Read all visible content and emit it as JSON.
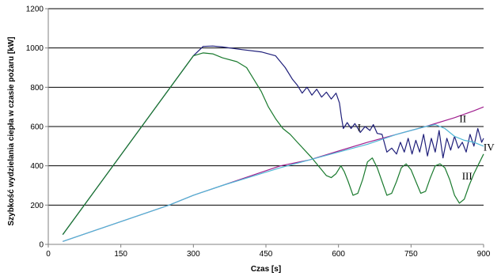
{
  "chart_data": {
    "type": "line",
    "title": "",
    "xlabel": "Czas [s]",
    "ylabel": "Szybkość wydzielania ciepła w czasie pożaru [kW]",
    "xlim": [
      0,
      900
    ],
    "ylim": [
      0,
      1200
    ],
    "xticks": [
      0,
      150,
      300,
      450,
      600,
      750,
      900
    ],
    "yticks": [
      0,
      200,
      400,
      600,
      800,
      1000,
      1200
    ],
    "grid": "horizontal",
    "colors": {
      "grid": "#000000",
      "axis": "#808080"
    },
    "series": [
      {
        "name": "I",
        "color": "#1f1f7a",
        "points": [
          [
            30,
            50
          ],
          [
            300,
            960
          ],
          [
            320,
            1008
          ],
          [
            340,
            1010
          ],
          [
            360,
            1005
          ],
          [
            400,
            992
          ],
          [
            440,
            980
          ],
          [
            470,
            960
          ],
          [
            490,
            900
          ],
          [
            505,
            840
          ],
          [
            515,
            810
          ],
          [
            525,
            770
          ],
          [
            535,
            800
          ],
          [
            545,
            760
          ],
          [
            555,
            790
          ],
          [
            565,
            750
          ],
          [
            575,
            775
          ],
          [
            585,
            740
          ],
          [
            595,
            770
          ],
          [
            602,
            720
          ],
          [
            606,
            650
          ],
          [
            610,
            590
          ],
          [
            618,
            620
          ],
          [
            626,
            590
          ],
          [
            634,
            615
          ],
          [
            645,
            570
          ],
          [
            655,
            600
          ],
          [
            665,
            580
          ],
          [
            672,
            610
          ],
          [
            680,
            565
          ],
          [
            690,
            560
          ],
          [
            700,
            470
          ],
          [
            710,
            490
          ],
          [
            720,
            460
          ],
          [
            728,
            520
          ],
          [
            736,
            470
          ],
          [
            744,
            540
          ],
          [
            752,
            460
          ],
          [
            760,
            530
          ],
          [
            768,
            470
          ],
          [
            776,
            560
          ],
          [
            784,
            450
          ],
          [
            792,
            540
          ],
          [
            800,
            470
          ],
          [
            808,
            580
          ],
          [
            816,
            440
          ],
          [
            824,
            540
          ],
          [
            832,
            480
          ],
          [
            840,
            550
          ],
          [
            848,
            490
          ],
          [
            856,
            520
          ],
          [
            864,
            470
          ],
          [
            872,
            560
          ],
          [
            880,
            500
          ],
          [
            888,
            590
          ],
          [
            896,
            520
          ],
          [
            900,
            540
          ]
        ]
      },
      {
        "name": "II",
        "color": "#a0208f",
        "points": [
          [
            30,
            15
          ],
          [
            250,
            200
          ],
          [
            300,
            250
          ],
          [
            360,
            300
          ],
          [
            420,
            350
          ],
          [
            480,
            400
          ],
          [
            540,
            430
          ],
          [
            600,
            475
          ],
          [
            660,
            520
          ],
          [
            720,
            560
          ],
          [
            780,
            600
          ],
          [
            840,
            645
          ],
          [
            880,
            680
          ],
          [
            900,
            700
          ]
        ]
      },
      {
        "name": "III",
        "color": "#1a7a2e",
        "points": [
          [
            30,
            50
          ],
          [
            300,
            960
          ],
          [
            320,
            975
          ],
          [
            340,
            970
          ],
          [
            360,
            950
          ],
          [
            390,
            930
          ],
          [
            410,
            900
          ],
          [
            420,
            860
          ],
          [
            440,
            780
          ],
          [
            455,
            700
          ],
          [
            470,
            640
          ],
          [
            485,
            590
          ],
          [
            500,
            560
          ],
          [
            515,
            520
          ],
          [
            530,
            480
          ],
          [
            545,
            440
          ],
          [
            555,
            410
          ],
          [
            565,
            380
          ],
          [
            575,
            350
          ],
          [
            585,
            340
          ],
          [
            595,
            360
          ],
          [
            605,
            400
          ],
          [
            612,
            370
          ],
          [
            620,
            320
          ],
          [
            630,
            250
          ],
          [
            640,
            260
          ],
          [
            650,
            330
          ],
          [
            660,
            420
          ],
          [
            670,
            440
          ],
          [
            680,
            390
          ],
          [
            690,
            320
          ],
          [
            700,
            250
          ],
          [
            710,
            260
          ],
          [
            720,
            320
          ],
          [
            730,
            390
          ],
          [
            740,
            410
          ],
          [
            750,
            380
          ],
          [
            760,
            320
          ],
          [
            770,
            260
          ],
          [
            780,
            270
          ],
          [
            790,
            340
          ],
          [
            800,
            400
          ],
          [
            810,
            410
          ],
          [
            820,
            390
          ],
          [
            830,
            330
          ],
          [
            840,
            250
          ],
          [
            850,
            210
          ],
          [
            860,
            230
          ],
          [
            870,
            300
          ],
          [
            880,
            360
          ],
          [
            890,
            410
          ],
          [
            900,
            460
          ]
        ]
      },
      {
        "name": "IV",
        "color": "#4fb8d6",
        "points": [
          [
            30,
            15
          ],
          [
            250,
            200
          ],
          [
            300,
            250
          ],
          [
            360,
            300
          ],
          [
            420,
            345
          ],
          [
            480,
            390
          ],
          [
            540,
            430
          ],
          [
            600,
            470
          ],
          [
            660,
            510
          ],
          [
            720,
            560
          ],
          [
            780,
            600
          ],
          [
            800,
            610
          ],
          [
            820,
            590
          ],
          [
            840,
            550
          ],
          [
            860,
            530
          ],
          [
            880,
            520
          ],
          [
            900,
            500
          ]
        ]
      }
    ],
    "annotations": [
      {
        "text": "I",
        "x": 643,
        "y": 578
      },
      {
        "text": "II",
        "x": 857,
        "y": 622
      },
      {
        "text": "III",
        "x": 866,
        "y": 330
      },
      {
        "text": "IV",
        "x": 911,
        "y": 478
      }
    ]
  }
}
